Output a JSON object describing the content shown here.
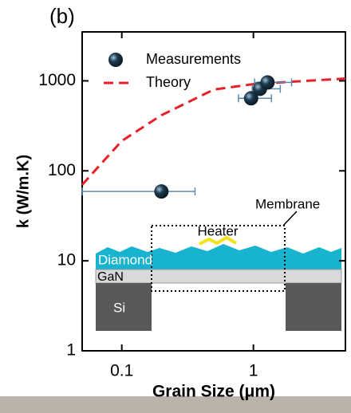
{
  "chart_data": {
    "type": "scatter",
    "panel_label": "(b)",
    "xlabel": "Grain Size (μm)",
    "ylabel": "k (W/m.K)",
    "xscale": "log",
    "yscale": "log",
    "xlim": [
      0.05,
      5
    ],
    "ylim": [
      1,
      3500
    ],
    "xticks": [
      0.1,
      1
    ],
    "yticks": [
      1,
      10,
      100,
      1000
    ],
    "legend": "top-left",
    "series": [
      {
        "name": "Measurements",
        "kind": "points",
        "color": "#1e3a4f",
        "error_color": "#5b8bb0",
        "x": [
          0.2,
          0.96,
          1.12,
          1.28
        ],
        "values": [
          59,
          640,
          815,
          960
        ],
        "x_low": [
          0.05,
          0.77,
          0.98,
          1.02
        ],
        "x_high": [
          0.36,
          1.37,
          1.6,
          1.95
        ]
      },
      {
        "name": "Theory",
        "kind": "dashed-line",
        "color": "#e8202a",
        "x": [
          0.05,
          0.1,
          0.2,
          0.5,
          1,
          2,
          5
        ],
        "values": [
          70,
          215,
          415,
          800,
          920,
          980,
          1060
        ]
      }
    ]
  },
  "inset": {
    "membrane": "Membrane",
    "heater": "Heater",
    "diamond": "Diamond",
    "gan": "GaN",
    "si": "Si"
  }
}
